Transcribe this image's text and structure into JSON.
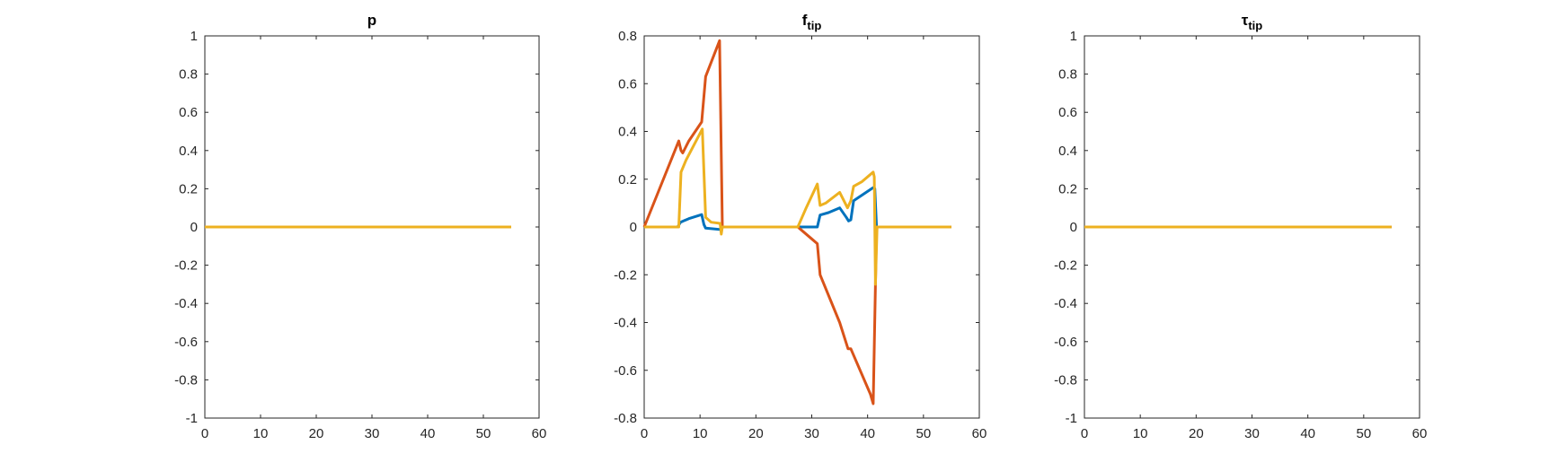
{
  "chart_data": [
    {
      "type": "line",
      "title": "p",
      "title_sub": "",
      "xlim": [
        0,
        60
      ],
      "ylim": [
        -1,
        1
      ],
      "xticks": [
        0,
        10,
        20,
        30,
        40,
        50,
        60
      ],
      "yticks": [
        -1,
        -0.8,
        -0.6,
        -0.4,
        -0.2,
        0,
        0.2,
        0.4,
        0.6,
        0.8,
        1
      ],
      "grid": false,
      "series": [
        {
          "color": "#0072BD",
          "points": [
            [
              0,
              0
            ],
            [
              55,
              0
            ]
          ]
        },
        {
          "color": "#D95319",
          "points": [
            [
              0,
              0
            ],
            [
              55,
              0
            ]
          ]
        },
        {
          "color": "#EDB120",
          "points": [
            [
              0,
              0
            ],
            [
              55,
              0
            ]
          ]
        }
      ]
    },
    {
      "type": "line",
      "title": "f",
      "title_sub": "tip",
      "xlim": [
        0,
        60
      ],
      "ylim": [
        -0.8,
        0.8
      ],
      "xticks": [
        0,
        10,
        20,
        30,
        40,
        50,
        60
      ],
      "yticks": [
        -0.8,
        -0.6,
        -0.4,
        -0.2,
        0,
        0.2,
        0.4,
        0.6,
        0.8
      ],
      "grid": false,
      "series": [
        {
          "color": "#0072BD",
          "points": [
            [
              0,
              0
            ],
            [
              6,
              0
            ],
            [
              6.5,
              0.02
            ],
            [
              8,
              0.035
            ],
            [
              10.3,
              0.052
            ],
            [
              10.7,
              0.01
            ],
            [
              11,
              -0.005
            ],
            [
              13.5,
              -0.01
            ],
            [
              14,
              0
            ],
            [
              27.5,
              0
            ],
            [
              31,
              0
            ],
            [
              31.5,
              0.05
            ],
            [
              33,
              0.06
            ],
            [
              35,
              0.08
            ],
            [
              36.2,
              0.04
            ],
            [
              36.6,
              0.025
            ],
            [
              37,
              0.03
            ],
            [
              37.5,
              0.11
            ],
            [
              41,
              0.165
            ],
            [
              41.3,
              0.16
            ],
            [
              41.6,
              0
            ],
            [
              55,
              0
            ]
          ]
        },
        {
          "color": "#D95319",
          "points": [
            [
              0,
              0
            ],
            [
              6.2,
              0.36
            ],
            [
              6.6,
              0.32
            ],
            [
              6.9,
              0.31
            ],
            [
              8,
              0.36
            ],
            [
              10.3,
              0.44
            ],
            [
              11,
              0.63
            ],
            [
              12,
              0.69
            ],
            [
              13.5,
              0.78
            ],
            [
              14,
              0
            ],
            [
              27.5,
              0
            ],
            [
              30,
              -0.05
            ],
            [
              31,
              -0.07
            ],
            [
              31.5,
              -0.2
            ],
            [
              35,
              -0.4
            ],
            [
              36.5,
              -0.51
            ],
            [
              37,
              -0.51
            ],
            [
              40.5,
              -0.7
            ],
            [
              41,
              -0.74
            ],
            [
              41.4,
              -0.24
            ],
            [
              41.6,
              0
            ],
            [
              55,
              0
            ]
          ]
        },
        {
          "color": "#EDB120",
          "points": [
            [
              0,
              0
            ],
            [
              6.2,
              0
            ],
            [
              6.6,
              0.23
            ],
            [
              7.5,
              0.28
            ],
            [
              10.4,
              0.41
            ],
            [
              11,
              0.04
            ],
            [
              12,
              0.02
            ],
            [
              13.6,
              0.015
            ],
            [
              13.8,
              -0.03
            ],
            [
              14,
              0
            ],
            [
              27.5,
              0
            ],
            [
              29,
              0.08
            ],
            [
              31,
              0.18
            ],
            [
              31.5,
              0.09
            ],
            [
              32.5,
              0.1
            ],
            [
              35,
              0.145
            ],
            [
              36.4,
              0.08
            ],
            [
              37,
              0.11
            ],
            [
              37.5,
              0.17
            ],
            [
              39,
              0.19
            ],
            [
              41,
              0.23
            ],
            [
              41.2,
              0.21
            ],
            [
              41.4,
              -0.24
            ],
            [
              41.7,
              0
            ],
            [
              55,
              0
            ]
          ]
        }
      ]
    },
    {
      "type": "line",
      "title": "τ",
      "title_sub": "tip",
      "xlim": [
        0,
        60
      ],
      "ylim": [
        -1,
        1
      ],
      "xticks": [
        0,
        10,
        20,
        30,
        40,
        50,
        60
      ],
      "yticks": [
        -1,
        -0.8,
        -0.6,
        -0.4,
        -0.2,
        0,
        0.2,
        0.4,
        0.6,
        0.8,
        1
      ],
      "grid": false,
      "series": [
        {
          "color": "#0072BD",
          "points": [
            [
              0,
              0
            ],
            [
              55,
              0
            ]
          ]
        },
        {
          "color": "#D95319",
          "points": [
            [
              0,
              0
            ],
            [
              55,
              0
            ]
          ]
        },
        {
          "color": "#EDB120",
          "points": [
            [
              0,
              0
            ],
            [
              55,
              0
            ]
          ]
        }
      ]
    }
  ]
}
